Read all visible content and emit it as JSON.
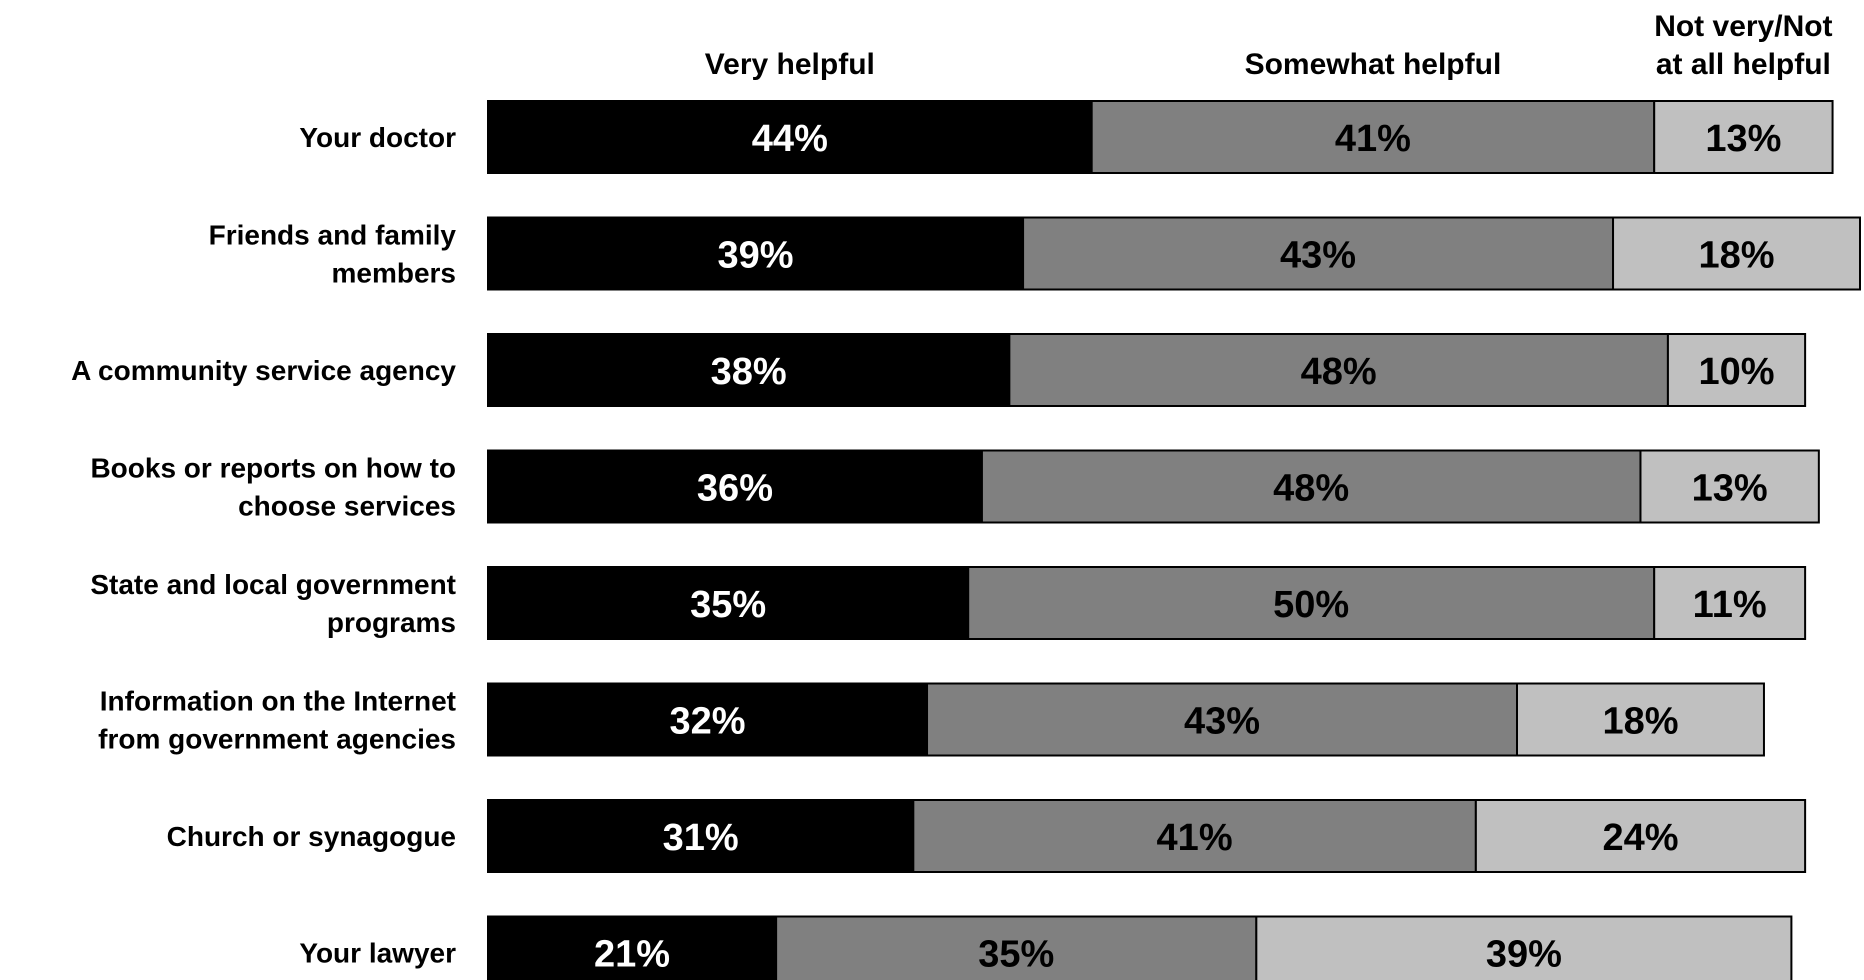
{
  "chart_data": {
    "type": "bar",
    "orientation": "horizontal",
    "stacked": true,
    "title": "",
    "column_headers": [
      {
        "lines": [
          "Very helpful"
        ]
      },
      {
        "lines": [
          "Somewhat helpful"
        ]
      },
      {
        "lines": [
          "Not very/Not",
          "at all helpful"
        ]
      }
    ],
    "categories": [
      [
        "Your doctor"
      ],
      [
        "Friends and family",
        "members"
      ],
      [
        "A community service agency"
      ],
      [
        "Books or reports on how to",
        "choose services"
      ],
      [
        "State and local government",
        "programs"
      ],
      [
        "Information on the Internet",
        "from government agencies"
      ],
      [
        "Church or synagogue"
      ],
      [
        "Your lawyer"
      ]
    ],
    "series": [
      {
        "name": "Very helpful",
        "color": "#000000",
        "label_color": "#ffffff",
        "values": [
          44,
          39,
          38,
          36,
          35,
          32,
          31,
          21
        ]
      },
      {
        "name": "Somewhat helpful",
        "color": "#808080",
        "label_color": "#000000",
        "values": [
          41,
          43,
          48,
          48,
          50,
          43,
          41,
          35
        ]
      },
      {
        "name": "Not very/Not at all helpful",
        "color": "#c0c0c0",
        "label_color": "#000000",
        "values": [
          13,
          18,
          10,
          13,
          11,
          18,
          24,
          39
        ]
      }
    ],
    "value_suffix": "%",
    "xlim": [
      0,
      100
    ],
    "legend": "column headers above bars",
    "grid": false
  }
}
